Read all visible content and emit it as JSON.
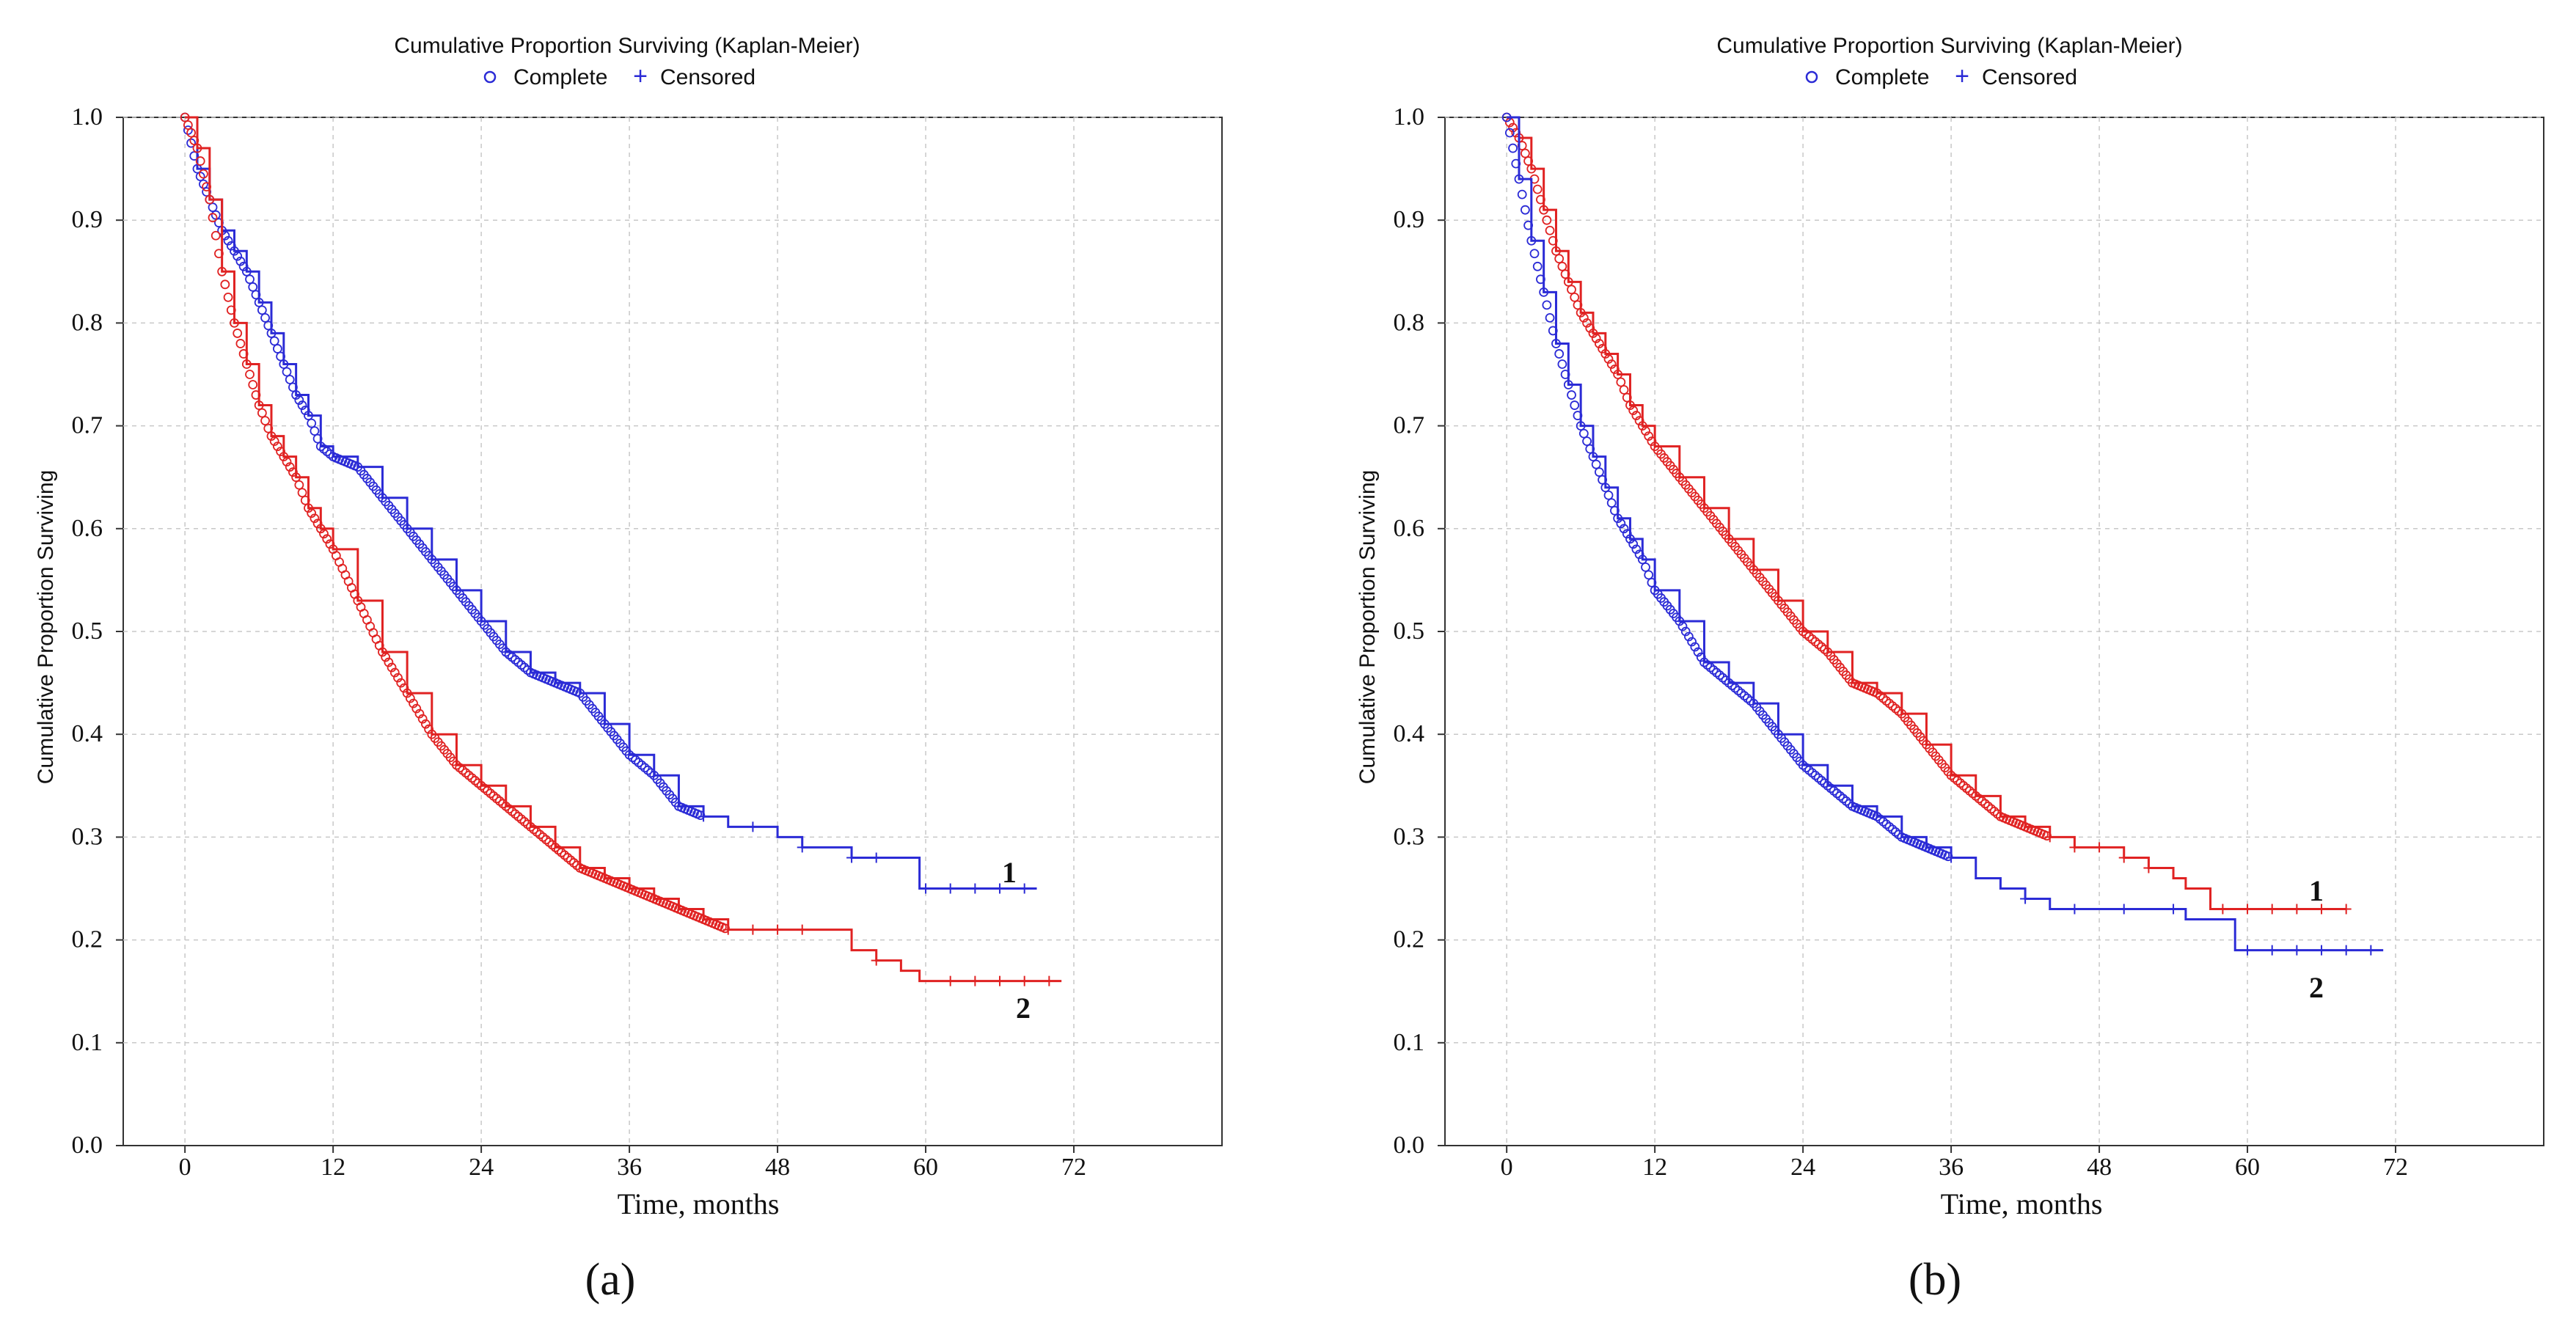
{
  "chart_data": [
    {
      "type": "line",
      "title": "Cumulative Proportion Surviving (Kaplan-Meier)",
      "legend": [
        {
          "label": "Complete",
          "marker": "circle"
        },
        {
          "label": "Censored",
          "marker": "plus"
        }
      ],
      "xlabel": "Time, months",
      "ylabel": "Cumulative Proportion Surviving",
      "xlim": [
        -5,
        84
      ],
      "ylim": [
        0,
        1.0
      ],
      "xticks": [
        "0",
        "12",
        "24",
        "36",
        "48",
        "60",
        "72"
      ],
      "yticks": [
        "0.0",
        "0.1",
        "0.2",
        "0.3",
        "0.4",
        "0.5",
        "0.6",
        "0.7",
        "0.8",
        "0.9",
        "1.0"
      ],
      "grid": true,
      "panel_label": "(a)",
      "series": [
        {
          "name": "1",
          "color": "#2b2bd6",
          "x": [
            0,
            1,
            2,
            3,
            4,
            5,
            6,
            7,
            8,
            9,
            10,
            11,
            12,
            14,
            16,
            18,
            20,
            22,
            24,
            26,
            28,
            30,
            32,
            34,
            36,
            38,
            40,
            42,
            44,
            46,
            48,
            50,
            52,
            54,
            56,
            58,
            59.5,
            62,
            66,
            69
          ],
          "y": [
            1.0,
            0.95,
            0.92,
            0.89,
            0.87,
            0.85,
            0.82,
            0.79,
            0.76,
            0.73,
            0.71,
            0.68,
            0.67,
            0.66,
            0.63,
            0.6,
            0.57,
            0.54,
            0.51,
            0.48,
            0.46,
            0.45,
            0.44,
            0.41,
            0.38,
            0.36,
            0.33,
            0.32,
            0.31,
            0.31,
            0.3,
            0.29,
            0.29,
            0.28,
            0.28,
            0.28,
            0.25,
            0.25,
            0.25,
            0.25
          ],
          "censored_x": [
            42,
            46,
            50,
            54,
            56,
            60,
            62,
            64,
            66,
            68
          ]
        },
        {
          "name": "2",
          "color": "#e02222",
          "x": [
            0,
            1,
            2,
            3,
            4,
            5,
            6,
            7,
            8,
            9,
            10,
            11,
            12,
            14,
            16,
            18,
            20,
            22,
            24,
            26,
            28,
            30,
            32,
            34,
            36,
            38,
            40,
            42,
            44,
            48,
            52,
            54,
            56,
            58,
            59.5,
            62,
            66,
            71
          ],
          "y": [
            1.0,
            0.97,
            0.92,
            0.85,
            0.8,
            0.76,
            0.72,
            0.69,
            0.67,
            0.65,
            0.62,
            0.6,
            0.58,
            0.53,
            0.48,
            0.44,
            0.4,
            0.37,
            0.35,
            0.33,
            0.31,
            0.29,
            0.27,
            0.26,
            0.25,
            0.24,
            0.23,
            0.22,
            0.21,
            0.21,
            0.21,
            0.19,
            0.18,
            0.17,
            0.16,
            0.16,
            0.16,
            0.16
          ],
          "censored_x": [
            44,
            46,
            48,
            50,
            56,
            62,
            64,
            66,
            68,
            70
          ]
        }
      ],
      "annotations": [
        "1",
        "2"
      ]
    },
    {
      "type": "line",
      "title": "Cumulative Proportion Surviving (Kaplan-Meier)",
      "legend": [
        {
          "label": "Complete",
          "marker": "circle"
        },
        {
          "label": "Censored",
          "marker": "plus"
        }
      ],
      "xlabel": "Time, months",
      "ylabel": "Cumulative Proportion Surviving",
      "xlim": [
        -5,
        84
      ],
      "ylim": [
        0,
        1.0
      ],
      "xticks": [
        "0",
        "12",
        "24",
        "36",
        "48",
        "60",
        "72"
      ],
      "yticks": [
        "0.0",
        "0.1",
        "0.2",
        "0.3",
        "0.4",
        "0.5",
        "0.6",
        "0.7",
        "0.8",
        "0.9",
        "1.0"
      ],
      "grid": true,
      "panel_label": "(b)",
      "series": [
        {
          "name": "1",
          "color": "#e02222",
          "x": [
            0,
            1,
            2,
            3,
            4,
            5,
            6,
            7,
            8,
            9,
            10,
            11,
            12,
            14,
            16,
            18,
            20,
            22,
            24,
            26,
            28,
            30,
            32,
            34,
            36,
            38,
            40,
            42,
            44,
            46,
            48,
            50,
            52,
            54,
            55,
            57,
            60,
            64,
            68
          ],
          "y": [
            1.0,
            0.98,
            0.95,
            0.91,
            0.87,
            0.84,
            0.81,
            0.79,
            0.77,
            0.75,
            0.72,
            0.7,
            0.68,
            0.65,
            0.62,
            0.59,
            0.56,
            0.53,
            0.5,
            0.48,
            0.45,
            0.44,
            0.42,
            0.39,
            0.36,
            0.34,
            0.32,
            0.31,
            0.3,
            0.29,
            0.29,
            0.28,
            0.27,
            0.26,
            0.25,
            0.23,
            0.23,
            0.23,
            0.23
          ],
          "censored_x": [
            44,
            46,
            48,
            50,
            52,
            58,
            60,
            62,
            64,
            66,
            68
          ]
        },
        {
          "name": "2",
          "color": "#2b2bd6",
          "x": [
            0,
            1,
            2,
            3,
            4,
            5,
            6,
            7,
            8,
            9,
            10,
            11,
            12,
            14,
            16,
            18,
            20,
            22,
            24,
            26,
            28,
            30,
            32,
            34,
            36,
            38,
            40,
            42,
            44,
            48,
            52,
            54,
            55,
            57,
            59,
            62,
            66,
            71
          ],
          "y": [
            1.0,
            0.94,
            0.88,
            0.83,
            0.78,
            0.74,
            0.7,
            0.67,
            0.64,
            0.61,
            0.59,
            0.57,
            0.54,
            0.51,
            0.47,
            0.45,
            0.43,
            0.4,
            0.37,
            0.35,
            0.33,
            0.32,
            0.3,
            0.29,
            0.28,
            0.26,
            0.25,
            0.24,
            0.23,
            0.23,
            0.23,
            0.23,
            0.22,
            0.22,
            0.19,
            0.19,
            0.19,
            0.19
          ],
          "censored_x": [
            36,
            42,
            46,
            50,
            54,
            60,
            62,
            64,
            66,
            68,
            70
          ]
        }
      ],
      "annotations": [
        "1",
        "2"
      ]
    }
  ]
}
